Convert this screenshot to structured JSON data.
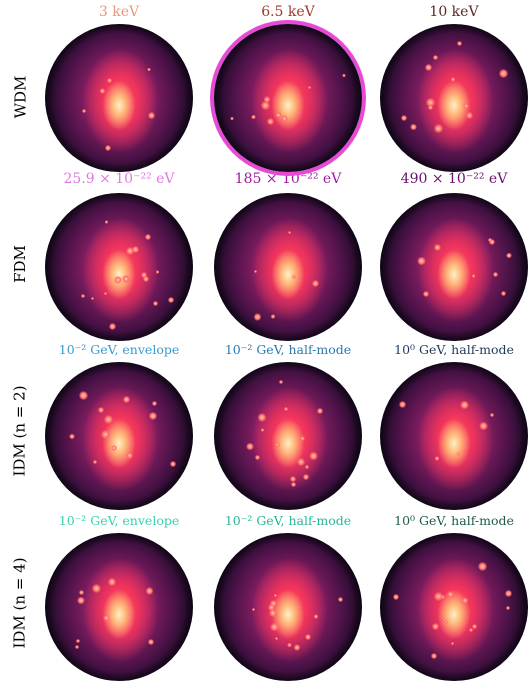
{
  "rows": [
    {
      "label": "WDM",
      "titles": [
        {
          "text": "3 keV",
          "color": "#e8987a"
        },
        {
          "text": "6.5 keV",
          "color": "#9a3a2a"
        },
        {
          "text": "10 keV",
          "color": "#5a2a20"
        }
      ]
    },
    {
      "label": "FDM",
      "titles": [
        {
          "text": "25.9 × 10⁻²² eV",
          "color": "#e07ae0"
        },
        {
          "text": "185 × 10⁻²² eV",
          "color": "#a01aa0"
        },
        {
          "text": "490 × 10⁻²² eV",
          "color": "#6a0f6a"
        }
      ]
    },
    {
      "label": "IDM (n = 2)",
      "titles": [
        {
          "text": "10⁻² GeV, envelope",
          "color": "#3a9ad0"
        },
        {
          "text": "10⁻² GeV, half-mode",
          "color": "#2a7ab0"
        },
        {
          "text": "10⁰ GeV, half-mode",
          "color": "#1f3a5a"
        }
      ]
    },
    {
      "label": "IDM (n = 4)",
      "titles": [
        {
          "text": "10⁻² GeV, envelope",
          "color": "#3ad0b0"
        },
        {
          "text": "10⁻² GeV, half-mode",
          "color": "#2ab69a"
        },
        {
          "text": "10⁰ GeV, half-mode",
          "color": "#1f5a4a"
        }
      ]
    }
  ],
  "highlight": {
    "row": 0,
    "col": 1,
    "color": "#e84ad8"
  }
}
